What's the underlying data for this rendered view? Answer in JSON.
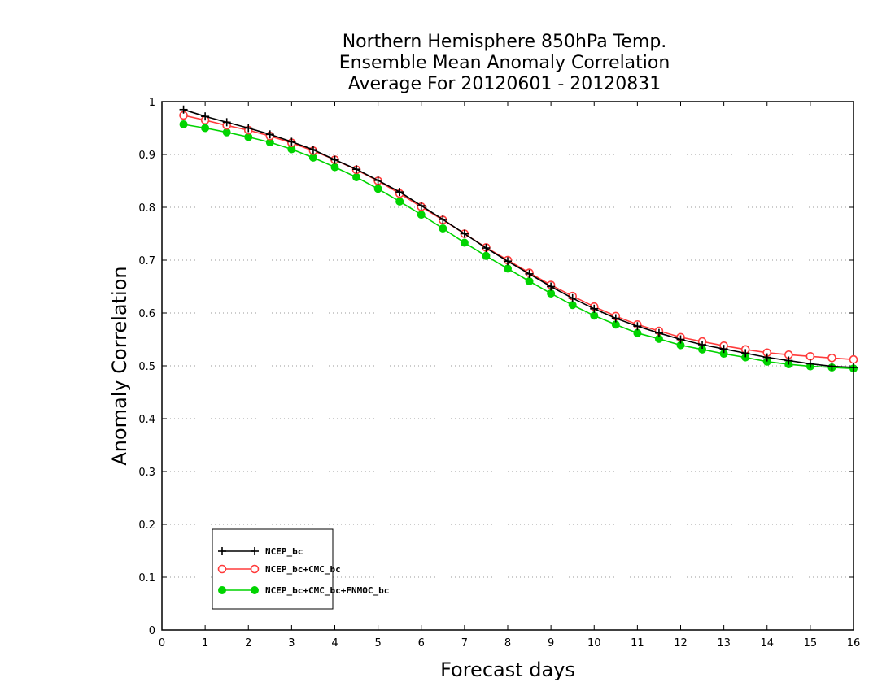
{
  "chart_data": {
    "type": "line",
    "title_lines": [
      "Northern Hemisphere 850hPa Temp.",
      "Ensemble Mean Anomaly Correlation",
      "Average For 20120601 - 20120831"
    ],
    "xlabel": "Forecast days",
    "ylabel": "Anomaly Correlation",
    "xlim": [
      0,
      16
    ],
    "ylim": [
      0,
      1
    ],
    "x_ticks": [
      0,
      1,
      2,
      3,
      4,
      5,
      6,
      7,
      8,
      9,
      10,
      11,
      12,
      13,
      14,
      15,
      16
    ],
    "y_ticks": [
      0,
      0.1,
      0.2,
      0.3,
      0.4,
      0.5,
      0.6,
      0.7,
      0.8,
      0.9,
      1
    ],
    "y_tick_labels": [
      "0",
      "0.1",
      "0.2",
      "0.3",
      "0.4",
      "0.5",
      "0.6",
      "0.7",
      "0.8",
      "0.9",
      "1"
    ],
    "grid": "horizontal dotted",
    "legend_position": "bottom-left",
    "x": [
      0.5,
      1,
      1.5,
      2,
      2.5,
      3,
      3.5,
      4,
      4.5,
      5,
      5.5,
      6,
      6.5,
      7,
      7.5,
      8,
      8.5,
      9,
      9.5,
      10,
      10.5,
      11,
      11.5,
      12,
      12.5,
      13,
      13.5,
      14,
      14.5,
      15,
      15.5,
      16
    ],
    "series": [
      {
        "name": "NCEP_bc",
        "color": "#000000",
        "marker": "plus",
        "values": [
          0.985,
          0.972,
          0.961,
          0.95,
          0.938,
          0.924,
          0.909,
          0.89,
          0.872,
          0.851,
          0.829,
          0.803,
          0.777,
          0.75,
          0.723,
          0.698,
          0.674,
          0.65,
          0.628,
          0.608,
          0.59,
          0.575,
          0.562,
          0.55,
          0.54,
          0.532,
          0.524,
          0.516,
          0.51,
          0.504,
          0.499,
          0.497
        ]
      },
      {
        "name": "NCEP_bc+CMC_bc",
        "color": "#ff3b3b",
        "marker": "open-circle",
        "values": [
          0.974,
          0.965,
          0.955,
          0.946,
          0.935,
          0.922,
          0.907,
          0.89,
          0.871,
          0.85,
          0.826,
          0.801,
          0.776,
          0.75,
          0.724,
          0.7,
          0.676,
          0.653,
          0.632,
          0.612,
          0.594,
          0.578,
          0.566,
          0.554,
          0.546,
          0.538,
          0.531,
          0.525,
          0.521,
          0.518,
          0.515,
          0.512
        ]
      },
      {
        "name": "NCEP_bc+CMC_bc+FNMOC_bc",
        "color": "#00d400",
        "marker": "filled-circle",
        "values": [
          0.957,
          0.95,
          0.942,
          0.933,
          0.923,
          0.91,
          0.894,
          0.876,
          0.857,
          0.835,
          0.811,
          0.786,
          0.76,
          0.733,
          0.708,
          0.684,
          0.66,
          0.637,
          0.615,
          0.595,
          0.578,
          0.562,
          0.551,
          0.539,
          0.531,
          0.523,
          0.516,
          0.508,
          0.503,
          0.499,
          0.497,
          0.495
        ]
      }
    ]
  }
}
